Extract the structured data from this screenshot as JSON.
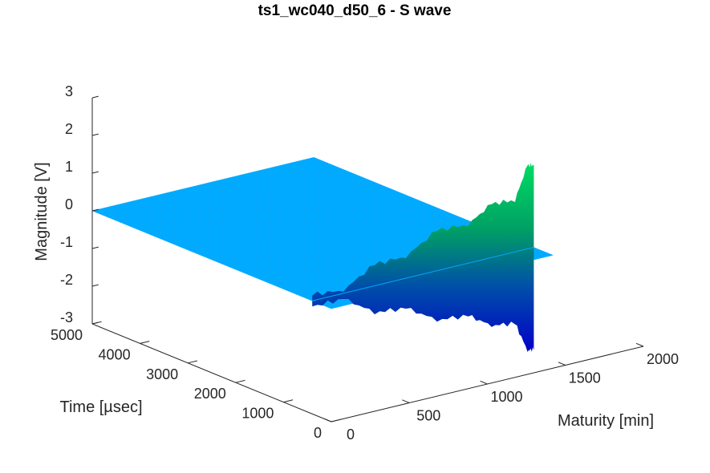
{
  "chart_data": {
    "type": "surface",
    "title": "ts1_wc040_d50_6 - S wave",
    "xlabel": "Maturity [min]",
    "ylabel": "Time [µsec]",
    "zlabel": "Magnitude [V]",
    "xlim": [
      0,
      2000
    ],
    "ylim": [
      0,
      5000
    ],
    "zlim": [
      -3,
      3
    ],
    "xticks": [
      0,
      500,
      1000,
      1500,
      2000
    ],
    "yticks": [
      0,
      1000,
      2000,
      3000,
      4000,
      5000
    ],
    "zticks": [
      -3,
      -2,
      -1,
      0,
      1,
      2,
      3
    ],
    "xtick_labels": [
      "0",
      "500",
      "1000",
      "1500",
      "2000"
    ],
    "ytick_labels": [
      "0",
      "1000",
      "2000",
      "3000",
      "4000",
      "5000"
    ],
    "ztick_labels": [
      "-3",
      "-2",
      "-1",
      "0",
      "1",
      "2",
      "3"
    ],
    "surface": {
      "maturity_range": [
        0,
        1420
      ],
      "time_range": [
        0,
        5000
      ],
      "baseline_magnitude": 0,
      "baseline_color": "#00aaff",
      "colormap": [
        "#0000c8",
        "#0050a8",
        "#00a064",
        "#00dc64"
      ]
    },
    "envelope": {
      "time_range": [
        0,
        800
      ],
      "maturity": [
        0,
        200,
        400,
        600,
        800,
        1000,
        1150,
        1300,
        1380,
        1420
      ],
      "max_magnitude": [
        0.05,
        0.2,
        0.45,
        0.7,
        0.95,
        1.15,
        1.3,
        1.5,
        2.1,
        2.3
      ],
      "min_magnitude": [
        -0.05,
        -0.25,
        -0.6,
        -0.9,
        -1.2,
        -1.5,
        -1.7,
        -2.0,
        -2.6,
        -2.8
      ]
    },
    "grid": false,
    "legend": "none"
  }
}
